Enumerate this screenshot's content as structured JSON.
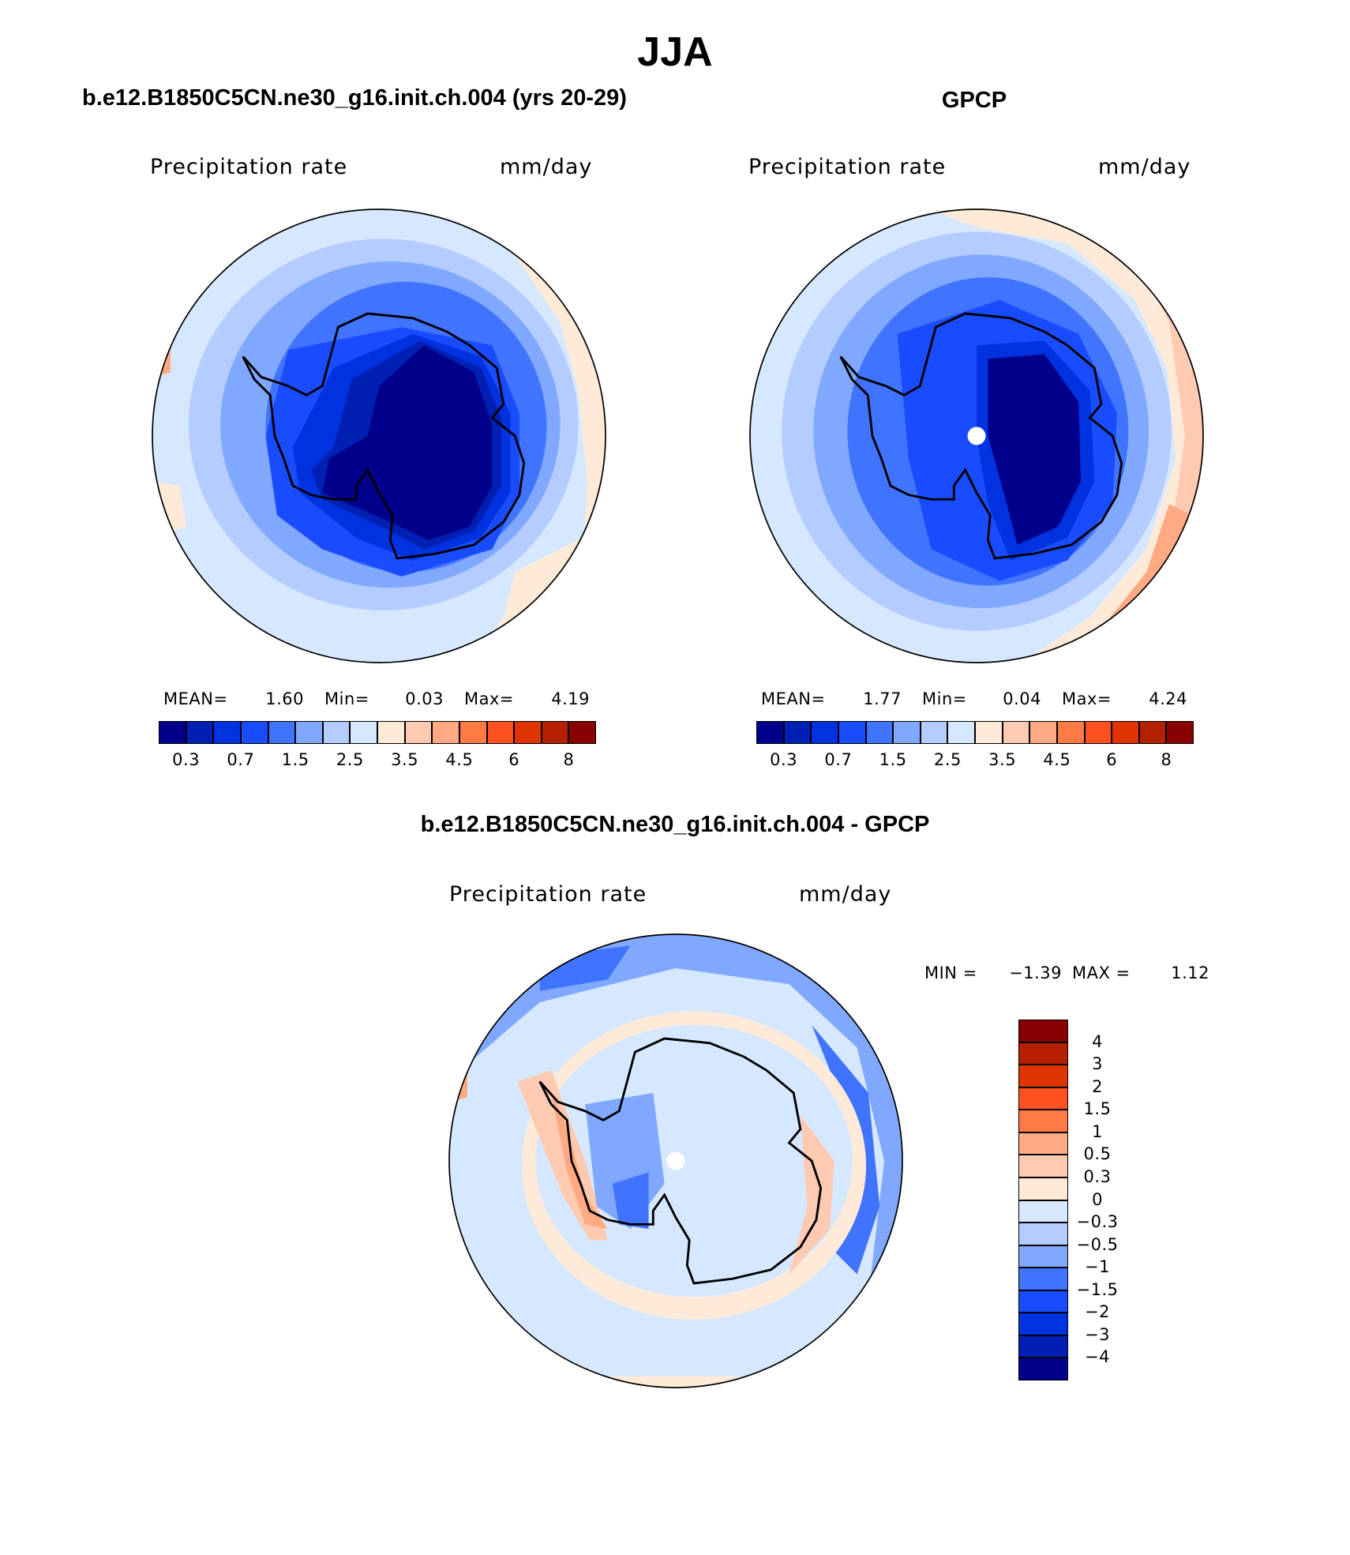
{
  "title": "JJA",
  "panels": [
    {
      "title": "b.e12.B1850C5CN.ne30_g16.init.ch.004 (yrs 20-29)",
      "label": "Precipitation rate",
      "units": "mm/day",
      "stats": {
        "mean_label": "MEAN=",
        "mean": "1.60",
        "min_label": "Min=",
        "min": "0.03",
        "max_label": "Max=",
        "max": "4.19"
      }
    },
    {
      "title": "GPCP",
      "label": "Precipitation rate",
      "units": "mm/day",
      "stats": {
        "mean_label": "MEAN=",
        "mean": "1.77",
        "min_label": "Min=",
        "min": "0.04",
        "max_label": "Max=",
        "max": "4.24"
      }
    }
  ],
  "colorbar": {
    "colors": [
      "#00008b",
      "#0020b4",
      "#0032e0",
      "#1a4cff",
      "#4074ff",
      "#80a8ff",
      "#b4ccff",
      "#d6e8ff",
      "#ffead8",
      "#ffcab2",
      "#ffaa82",
      "#ff7a44",
      "#ff5220",
      "#e03400",
      "#b42000",
      "#880000"
    ],
    "labels": [
      "0.3",
      "0.7",
      "1.5",
      "2.5",
      "3.5",
      "4.5",
      "6",
      "8"
    ]
  },
  "diff": {
    "title": "b.e12.B1850C5CN.ne30_g16.init.ch.004 - GPCP",
    "label": "Precipitation rate",
    "units": "mm/day",
    "min_label": "MIN =",
    "min": "−1.39",
    "max_label": "MAX =",
    "max": "1.12",
    "colorbar": {
      "colors": [
        "#880000",
        "#b42000",
        "#e03400",
        "#ff5220",
        "#ff7a44",
        "#ffaa82",
        "#ffcab2",
        "#ffead8",
        "#d6e8ff",
        "#b4ccff",
        "#80a8ff",
        "#4074ff",
        "#1a4cff",
        "#0032e0",
        "#0020b4",
        "#00008b"
      ],
      "labels": [
        "4",
        "3",
        "2",
        "1.5",
        "1",
        "0.5",
        "0.3",
        "0",
        "−0.3",
        "−0.5",
        "−1",
        "−1.5",
        "−2",
        "−3",
        "−4"
      ]
    }
  },
  "chart_data": [
    {
      "type": "heatmap",
      "title": "b.e12.B1850C5CN.ne30_g16.init.ch.004 (yrs 20-29)",
      "variable": "Precipitation rate",
      "units": "mm/day",
      "projection": "south-polar-stereographic",
      "mean": 1.6,
      "min": 0.03,
      "max": 4.19,
      "levels": [
        0.2,
        0.3,
        0.5,
        0.7,
        1,
        1.5,
        2,
        2.5,
        3,
        3.5,
        4,
        4.5,
        5,
        6,
        7,
        8
      ]
    },
    {
      "type": "heatmap",
      "title": "GPCP",
      "variable": "Precipitation rate",
      "units": "mm/day",
      "projection": "south-polar-stereographic",
      "mean": 1.77,
      "min": 0.04,
      "max": 4.24,
      "levels": [
        0.2,
        0.3,
        0.5,
        0.7,
        1,
        1.5,
        2,
        2.5,
        3,
        3.5,
        4,
        4.5,
        5,
        6,
        7,
        8
      ]
    },
    {
      "type": "heatmap",
      "title": "b.e12.B1850C5CN.ne30_g16.init.ch.004 - GPCP",
      "variable": "Precipitation rate",
      "units": "mm/day",
      "projection": "south-polar-stereographic",
      "min": -1.39,
      "max": 1.12,
      "levels": [
        -4,
        -3,
        -2,
        -1.5,
        -1,
        -0.5,
        -0.3,
        0,
        0.3,
        0.5,
        1,
        1.5,
        2,
        3,
        4
      ]
    }
  ]
}
